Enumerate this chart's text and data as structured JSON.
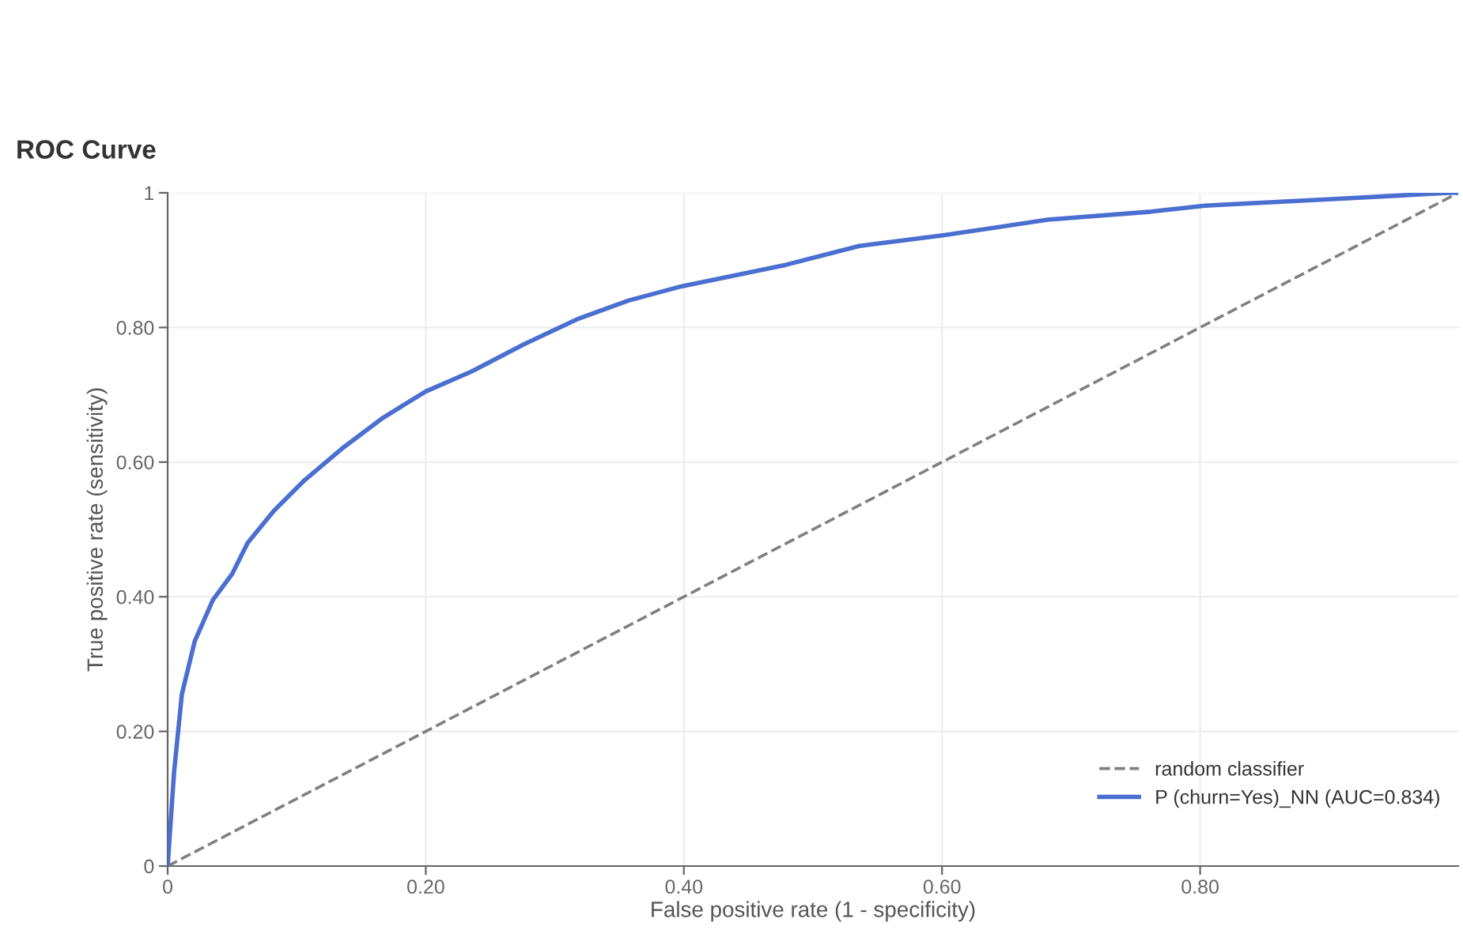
{
  "chart_data": {
    "type": "line",
    "title": "ROC Curve",
    "xlabel": "False positive rate (1 - specificity)",
    "ylabel": "True positive rate (sensitivity)",
    "xlim": [
      0,
      1
    ],
    "ylim": [
      0,
      1
    ],
    "xticks": [
      0,
      {
        "value": 0.2,
        "label": "0.20"
      },
      {
        "value": 0.4,
        "label": "0.40"
      },
      {
        "value": 0.6,
        "label": "0.60"
      },
      {
        "value": 0.8,
        "label": "0.80"
      }
    ],
    "yticks": [
      0,
      {
        "value": 0.2,
        "label": "0.20"
      },
      {
        "value": 0.4,
        "label": "0.40"
      },
      {
        "value": 0.6,
        "label": "0.60"
      },
      {
        "value": 0.8,
        "label": "0.80"
      },
      1
    ],
    "grid": true,
    "legend": "bottom right",
    "series": [
      {
        "name": "random classifier",
        "color": "#808080",
        "line_style": "dashed",
        "x": [
          0,
          1
        ],
        "values": [
          0,
          1
        ]
      },
      {
        "name": "P (churn=Yes)_NN (AUC=0.834)",
        "color": "#4a6fd0",
        "line_style": "solid",
        "x": [
          0,
          0.005,
          0.011,
          0.021,
          0.035,
          0.05,
          0.062,
          0.082,
          0.106,
          0.135,
          0.167,
          0.2,
          0.236,
          0.276,
          0.317,
          0.357,
          0.398,
          0.479,
          0.536,
          0.601,
          0.682,
          0.762,
          0.804,
          0.905,
          0.994,
          1
        ],
        "values": [
          0,
          0.14,
          0.255,
          0.334,
          0.395,
          0.434,
          0.48,
          0.527,
          0.573,
          0.62,
          0.666,
          0.705,
          0.735,
          0.775,
          0.812,
          0.84,
          0.861,
          0.893,
          0.921,
          0.937,
          0.96,
          0.972,
          0.981,
          0.991,
          1.0,
          1
        ]
      }
    ]
  }
}
